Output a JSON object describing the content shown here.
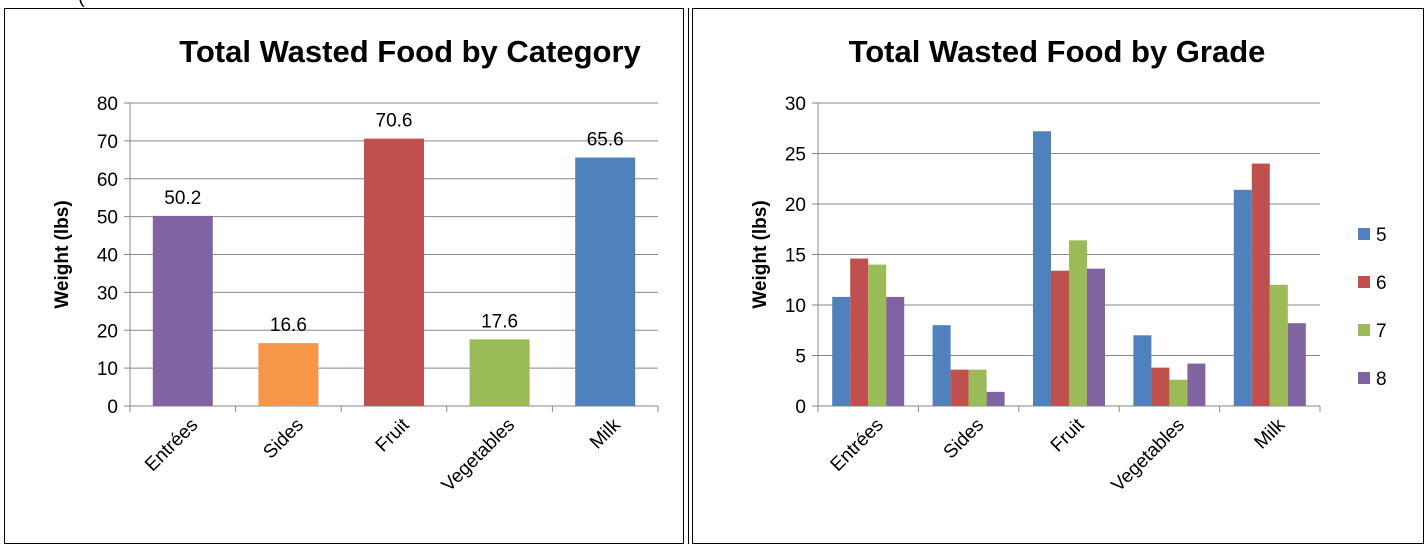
{
  "header_fragment": "(",
  "chart_data": [
    {
      "type": "bar",
      "title": "Total Wasted Food by Category",
      "xlabel": "",
      "ylabel": "Weight (lbs)",
      "ylim": [
        0,
        80
      ],
      "yticks": [
        0,
        10,
        20,
        30,
        40,
        50,
        60,
        70,
        80
      ],
      "grid": true,
      "legend": "none",
      "categories": [
        "Entrées",
        "Sides",
        "Fruit",
        "Vegetables",
        "Milk"
      ],
      "values": [
        50.2,
        16.6,
        70.6,
        17.6,
        65.6
      ],
      "data_labels": [
        "50.2",
        "16.6",
        "70.6",
        "17.6",
        "65.6"
      ],
      "colors": [
        "#8064a2",
        "#f79646",
        "#c0504d",
        "#9bbb59",
        "#4f81bd"
      ]
    },
    {
      "type": "bar",
      "title": "Total Wasted Food by Grade",
      "xlabel": "",
      "ylabel": "Weight (lbs)",
      "ylim": [
        0,
        30
      ],
      "yticks": [
        0,
        5,
        10,
        15,
        20,
        25,
        30
      ],
      "grid": true,
      "legend": "right",
      "categories": [
        "Entrées",
        "Sides",
        "Fruit",
        "Vegetables",
        "Milk"
      ],
      "series": [
        {
          "name": "5",
          "color": "#4f81bd",
          "values": [
            10.8,
            8.0,
            27.2,
            7.0,
            21.4
          ]
        },
        {
          "name": "6",
          "color": "#c0504d",
          "values": [
            14.6,
            3.6,
            13.4,
            3.8,
            24.0
          ]
        },
        {
          "name": "7",
          "color": "#9bbb59",
          "values": [
            14.0,
            3.6,
            16.4,
            2.6,
            12.0
          ]
        },
        {
          "name": "8",
          "color": "#8064a2",
          "values": [
            10.8,
            1.4,
            13.6,
            4.2,
            8.2
          ]
        }
      ]
    }
  ]
}
